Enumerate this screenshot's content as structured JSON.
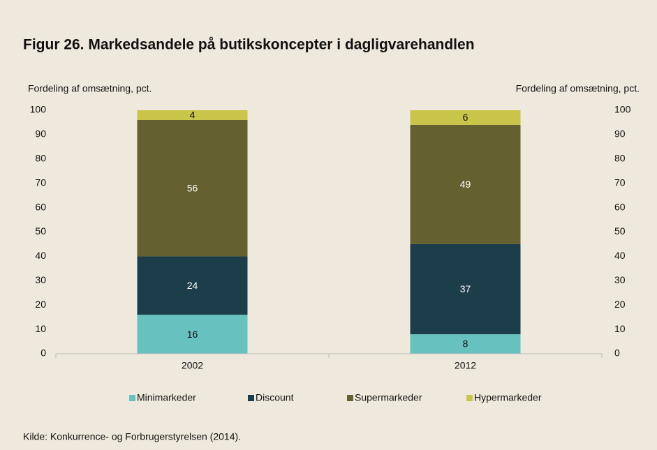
{
  "chart_data": {
    "type": "stacked_bar",
    "title": "Figur 26. Markedsandele på butikskoncepter i dagligvarehandlen",
    "ylabel": "Fordeling af omsætning, pct.",
    "y2label": "Fordeling af omsætning, pct.",
    "categories": [
      "2002",
      "2012"
    ],
    "series": [
      {
        "name": "Minimarkeder",
        "color": "#67c2bf",
        "values": [
          16,
          8
        ]
      },
      {
        "name": "Discount",
        "color": "#1c3d4a",
        "values": [
          24,
          37
        ]
      },
      {
        "name": "Supermarkeder",
        "color": "#646030",
        "values": [
          56,
          49
        ]
      },
      {
        "name": "Hypermarkeder",
        "color": "#c9c44a",
        "values": [
          4,
          6
        ]
      }
    ],
    "ylim": [
      0,
      100
    ],
    "yticks": [
      0,
      10,
      20,
      30,
      40,
      50,
      60,
      70,
      80,
      90,
      100
    ],
    "y2lim": [
      0,
      100
    ],
    "y2ticks": [
      0,
      10,
      20,
      30,
      40,
      50,
      60,
      70,
      80,
      90,
      100
    ],
    "legend": "bottom",
    "source": "Kilde: Konkurrence- og Forbrugerstyrelsen (2014)."
  }
}
